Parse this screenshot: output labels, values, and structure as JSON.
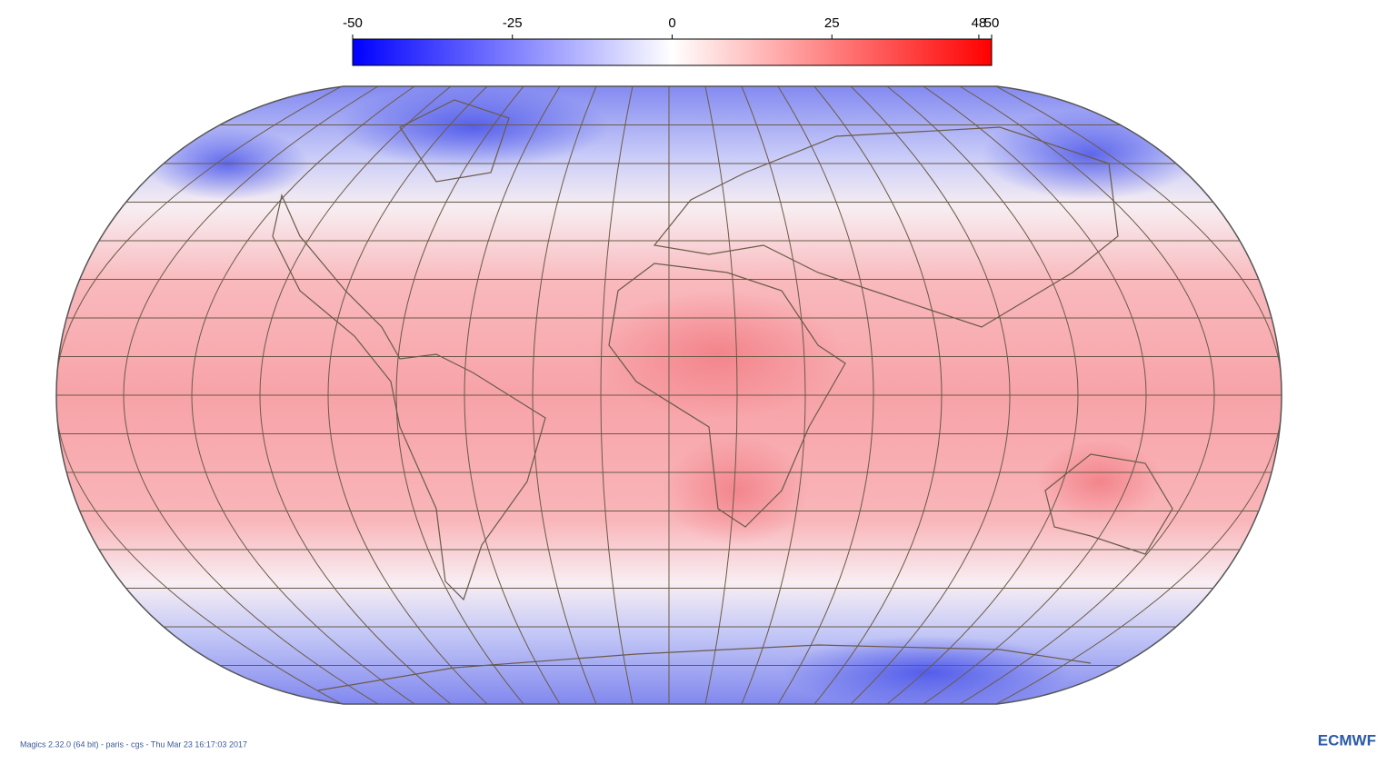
{
  "colorbar": {
    "min": -50,
    "max": 50,
    "colors": [
      "#0000ff",
      "#ffffff",
      "#ff0000"
    ],
    "ticks": [
      -50,
      -25,
      0,
      25,
      48,
      50
    ]
  },
  "footer": {
    "text": "Magics 2.32.0 (64 bit) - paris - cgs - Thu Mar 23 16:17:03 2017",
    "logo": "ECMWF"
  }
}
